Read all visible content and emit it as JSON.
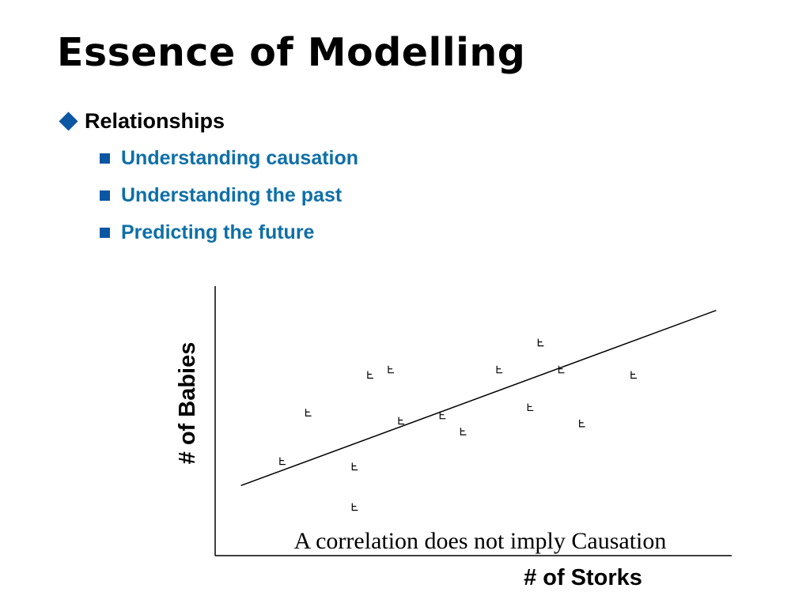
{
  "slide": {
    "title": "Essence of Modelling",
    "bullet": "Relationships",
    "sub_bullets": [
      "Understanding causation",
      "Understanding the past",
      "Predicting the future"
    ]
  },
  "colors": {
    "bullet_marker": "#0b57a4",
    "sub_bullet_text": "#0e6fa8"
  },
  "chart_data": {
    "type": "scatter",
    "xlabel": "# of Storks",
    "ylabel": "# of Babies",
    "annotation": "A correlation does not imply Causation",
    "xlim": [
      0,
      100
    ],
    "ylim": [
      0,
      100
    ],
    "grid": false,
    "legend": "none",
    "point_marker": "flag",
    "points": [
      [
        13,
        35
      ],
      [
        18,
        53
      ],
      [
        27,
        33
      ],
      [
        27,
        18
      ],
      [
        30,
        67
      ],
      [
        34,
        69
      ],
      [
        36,
        50
      ],
      [
        44,
        52
      ],
      [
        48,
        46
      ],
      [
        55,
        69
      ],
      [
        61,
        55
      ],
      [
        63,
        79
      ],
      [
        67,
        69
      ],
      [
        71,
        49
      ],
      [
        81,
        67
      ]
    ],
    "trend_line": {
      "x": [
        5,
        97
      ],
      "y": [
        26,
        91
      ]
    }
  }
}
